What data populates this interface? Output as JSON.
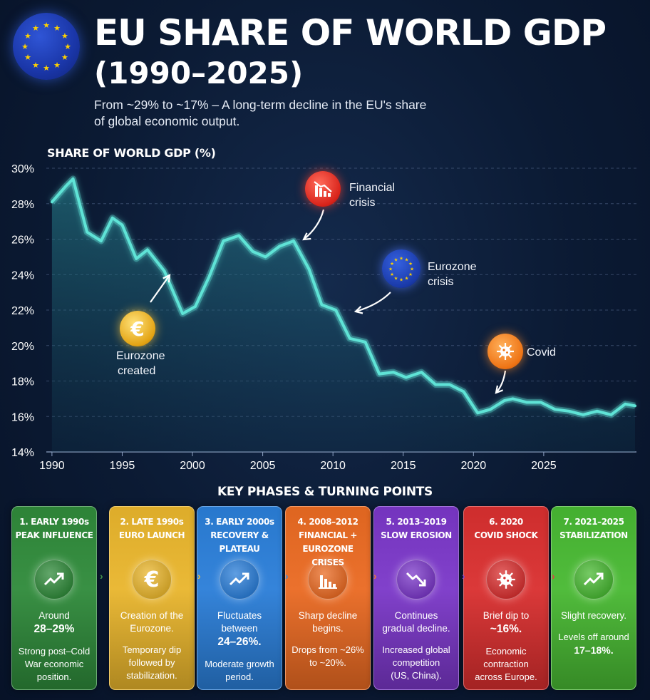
{
  "header": {
    "title": "EU SHARE OF WORLD GDP",
    "title_years": "(1990–2025)",
    "subtitle": "From ~29% to ~17% – A long-term decline in the EU's share of global economic output."
  },
  "chart_data": {
    "type": "area",
    "title": "SHARE OF WORLD GDP (%)",
    "xlabel": "",
    "ylabel": "",
    "x_ticks": [
      "1990",
      "1995",
      "2000",
      "2005",
      "2010",
      "2015",
      "2020",
      "2025"
    ],
    "y_ticks": [
      "14%",
      "16%",
      "18%",
      "20%",
      "22%",
      "24%",
      "26%",
      "28%",
      "30%"
    ],
    "ylim": [
      14,
      30
    ],
    "grid": true,
    "x": [
      1990,
      1991,
      1991.5,
      1992.5,
      1993.5,
      1994.3,
      1995,
      1996,
      1996.8,
      1998,
      1999.3,
      2000.2,
      2001.2,
      2002.2,
      2003.3,
      2004.3,
      2005.2,
      2006.2,
      2007.2,
      2008.3,
      2009.2,
      2010.2,
      2011.2,
      2012.3,
      2013.3,
      2014.3,
      2015.2,
      2016.3,
      2017.3,
      2018.3,
      2019.3,
      2020.3,
      2021.2,
      2022.2,
      2022.8,
      2023.8,
      2024.8,
      2025.8,
      2026.8,
      2027.8,
      2028.8,
      2029.8,
      2030.8,
      2031.5
    ],
    "series": [
      {
        "values": [
          28.1,
          29.0,
          29.4,
          26.4,
          25.9,
          27.2,
          26.8,
          24.9,
          25.4,
          24.2,
          21.8,
          22.2,
          23.9,
          25.9,
          26.2,
          25.3,
          25.0,
          25.6,
          25.9,
          24.3,
          22.3,
          22.0,
          20.4,
          20.2,
          18.4,
          18.5,
          18.2,
          18.5,
          17.8,
          17.8,
          17.4,
          16.2,
          16.4,
          16.9,
          17.0,
          16.8,
          16.8,
          16.4,
          16.3,
          16.1,
          16.3,
          16.1,
          16.7,
          16.6
        ]
      }
    ],
    "annotations": [
      {
        "label": "Eurozone created",
        "icon": "euro-coin-icon",
        "x": 1998
      },
      {
        "label": "Financial crisis",
        "icon": "falling-chart-icon",
        "x": 2007
      },
      {
        "label": "Eurozone crisis",
        "icon": "eu-stars-icon",
        "x": 2010.5
      },
      {
        "label": "Covid",
        "icon": "virus-icon",
        "x": 2020.5
      }
    ],
    "colors": {
      "line": "#5fe3d6",
      "area": "#1d6b78"
    }
  },
  "annotations_text": {
    "eurozone_created_1": "Eurozone",
    "eurozone_created_2": "created",
    "financial_crisis_1": "Financial",
    "financial_crisis_2": "crisis",
    "eurozone_crisis_1": "Eurozone",
    "eurozone_crisis_2": "crisis",
    "covid": "Covid"
  },
  "phases": {
    "heading": "KEY PHASES & TURNING POINTS",
    "cards": [
      {
        "title_1": "1. EARLY 1990s",
        "title_2": "PEAK INFLUENCE",
        "title_3": "",
        "main_1": "Around",
        "big": "28–29%",
        "main_2": "",
        "detail_1": "Strong post–Cold",
        "detail_2": "War economic",
        "detail_3": "position.",
        "icon": "trend-up-icon",
        "color": "#2f8a3a"
      },
      {
        "title_1": "2. LATE 1990s",
        "title_2": "EURO LAUNCH",
        "title_3": "",
        "main_1": "Creation of the",
        "big": "",
        "main_2": "Eurozone.",
        "detail_1": "Temporary dip",
        "detail_2": "followed by",
        "detail_3": "stabilization.",
        "icon": "euro-icon",
        "color": "#e9b52c"
      },
      {
        "title_1": "3. EARLY 2000s",
        "title_2": "RECOVERY &",
        "title_3": "PLATEAU",
        "main_1": "Fluctuates",
        "big": "24–26%.",
        "main_2": "between",
        "detail_1": "Moderate growth",
        "detail_2": "period.",
        "detail_3": "",
        "icon": "trend-up-icon",
        "color": "#2a7ed8"
      },
      {
        "title_1": "4. 2008–2012",
        "title_2": "FINANCIAL +",
        "title_3": "EUROZONE CRISES",
        "main_1": "Sharp decline",
        "big": "",
        "main_2": "begins.",
        "detail_1": "Drops from ~26%",
        "detail_2": "to ~20%.",
        "detail_3": "",
        "icon": "falling-chart-icon",
        "color": "#ea6a22"
      },
      {
        "title_1": "5. 2013–2019",
        "title_2": "SLOW EROSION",
        "title_3": "",
        "main_1": "Continues",
        "big": "",
        "main_2": "gradual decline.",
        "detail_1": "Increased global",
        "detail_2": "competition",
        "detail_3": "(US, China).",
        "icon": "trend-down-icon",
        "color": "#7a37c8"
      },
      {
        "title_1": "6. 2020",
        "title_2": "COVID SHOCK",
        "title_3": "",
        "main_1": "Brief dip to",
        "big": "~16%.",
        "main_2": "",
        "detail_1": "Economic",
        "detail_2": "contraction",
        "detail_3": "across Europe.",
        "icon": "virus-icon",
        "color": "#d92f2f"
      },
      {
        "title_1": "7. 2021–2025",
        "title_2": "STABILIZATION",
        "title_3": "",
        "main_1": "Slight recovery.",
        "big": "",
        "main_2": "",
        "detail_1": "Levels off around",
        "detail_2": "17–18%.",
        "detail_3": "",
        "icon": "trend-up-icon",
        "color": "#48b832"
      }
    ]
  }
}
